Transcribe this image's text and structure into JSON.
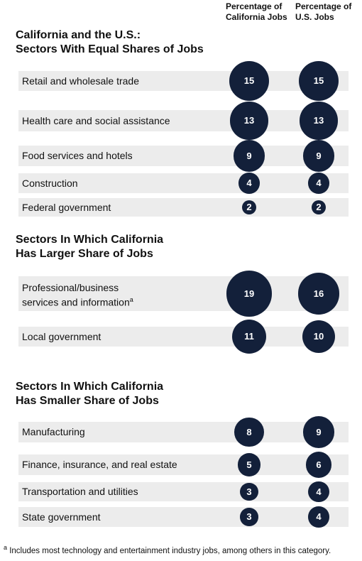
{
  "chart_data": {
    "type": "bubble-table",
    "column_headers": [
      "Percentage of California Jobs",
      "Percentage of U.S. Jobs"
    ],
    "sections": [
      {
        "title_lines": [
          "California and the U.S.:",
          "Sectors With Equal Shares of Jobs"
        ],
        "rows": [
          {
            "label": "Retail and wholesale trade",
            "ca": 15,
            "us": 15
          },
          {
            "label": "Health care and social assistance",
            "ca": 13,
            "us": 13
          },
          {
            "label": "Food services and hotels",
            "ca": 9,
            "us": 9
          },
          {
            "label": "Construction",
            "ca": 4,
            "us": 4
          },
          {
            "label": "Federal government",
            "ca": 2,
            "us": 2
          }
        ]
      },
      {
        "title_lines": [
          "Sectors In Which California",
          "Has Larger Share of Jobs"
        ],
        "rows": [
          {
            "label_lines": [
              "Professional/business",
              "services and information"
            ],
            "footnote_marker": "a",
            "ca": 19,
            "us": 16
          },
          {
            "label": "Local government",
            "ca": 11,
            "us": 10
          }
        ]
      },
      {
        "title_lines": [
          "Sectors In Which California",
          "Has Smaller Share of Jobs"
        ],
        "rows": [
          {
            "label": "Manufacturing",
            "ca": 8,
            "us": 9
          },
          {
            "label": "Finance, insurance, and real estate",
            "ca": 5,
            "us": 6
          },
          {
            "label": "Transportation and utilities",
            "ca": 3,
            "us": 4
          },
          {
            "label": "State government",
            "ca": 3,
            "us": 4
          }
        ]
      }
    ],
    "footnote": {
      "marker": "a",
      "text": "Includes most technology and entertainment industry jobs, among others in this category."
    },
    "colors": {
      "bubble": "#13203a",
      "row_background": "#ececec"
    }
  }
}
